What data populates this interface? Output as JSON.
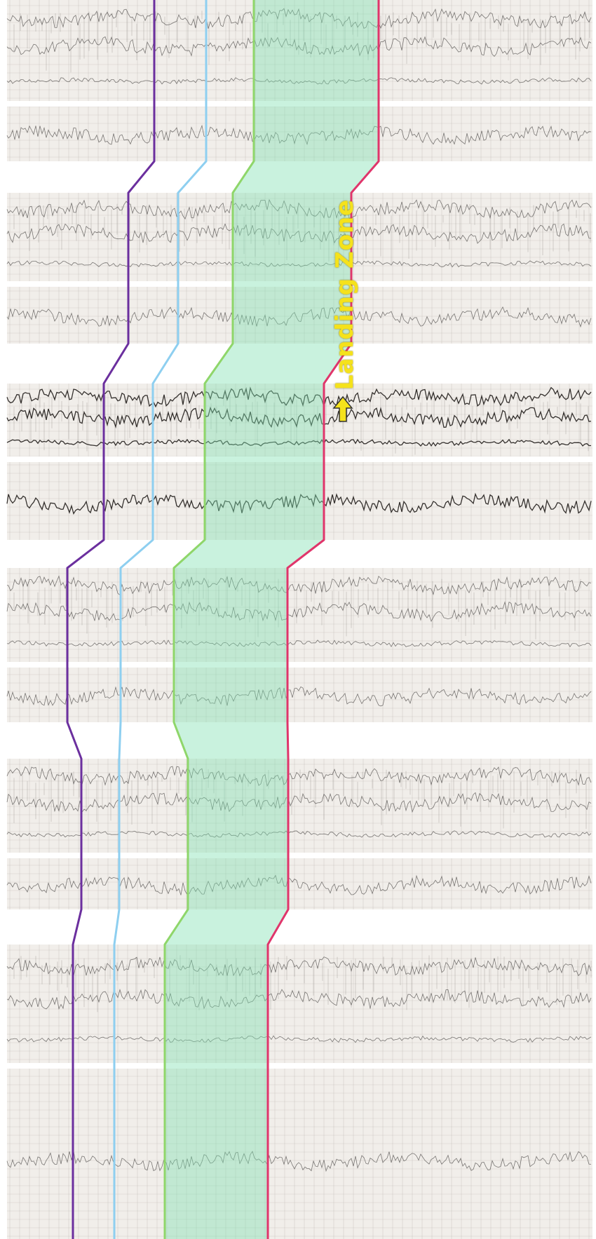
{
  "annotation": {
    "label": "Landing Zone",
    "label_color": "#f5e21b",
    "arrow_icon": "up-arrow-icon",
    "arrow_color": "#f5e21b"
  },
  "strip_count": 6,
  "colors": {
    "paper": "#f1eeea",
    "grid": "#b9b3ad",
    "trace": "#2a2624",
    "zone_fill": "#7fe0b0",
    "boundary_purple": "#6b2f9e",
    "boundary_blue": "#8ecff0",
    "boundary_green": "#8fd66a",
    "boundary_red": "#e0356b"
  }
}
